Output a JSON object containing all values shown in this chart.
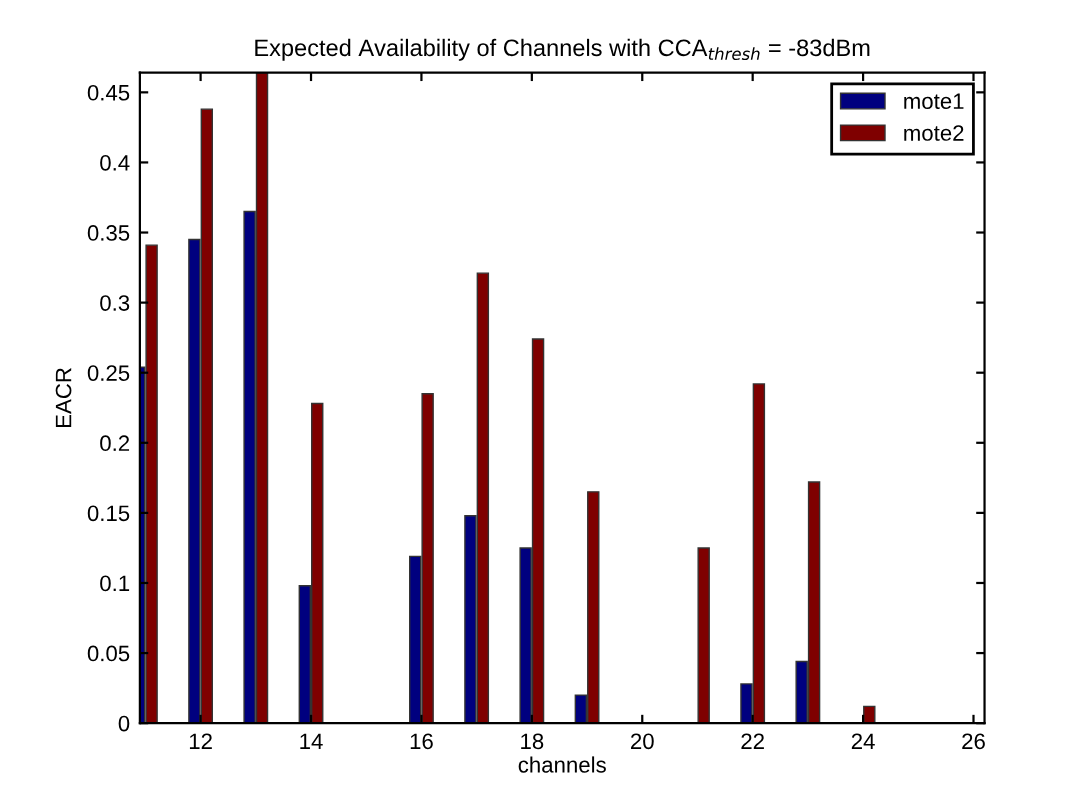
{
  "chart_data": {
    "type": "bar",
    "title": "Expected Availability of Channels with CCA$_{thresh}$ = -83dBm",
    "xlabel": "channels",
    "ylabel": "EACR",
    "x": [
      11,
      12,
      13,
      14,
      15,
      16,
      17,
      18,
      19,
      20,
      21,
      22,
      23,
      24
    ],
    "series": [
      {
        "name": "mote1",
        "color": "#00007f",
        "values": [
          0.254,
          0.345,
          0.365,
          0.098,
          null,
          0.119,
          0.148,
          0.125,
          0.02,
          null,
          null,
          0.028,
          0.044,
          null
        ]
      },
      {
        "name": "mote2",
        "color": "#7f0000",
        "values": [
          0.341,
          0.438,
          0.464,
          0.228,
          null,
          0.235,
          0.321,
          0.274,
          0.165,
          null,
          0.125,
          0.242,
          0.172,
          0.012
        ]
      }
    ],
    "xlim": [
      10.9,
      26.2
    ],
    "xticks": [
      12,
      14,
      16,
      18,
      20,
      22,
      24,
      26
    ],
    "ylim": [
      0,
      0.464
    ],
    "yticks": [
      0,
      0.05,
      0.1,
      0.15,
      0.2,
      0.25,
      0.3,
      0.35,
      0.4,
      0.45
    ],
    "grid": false,
    "legend": "top right"
  }
}
